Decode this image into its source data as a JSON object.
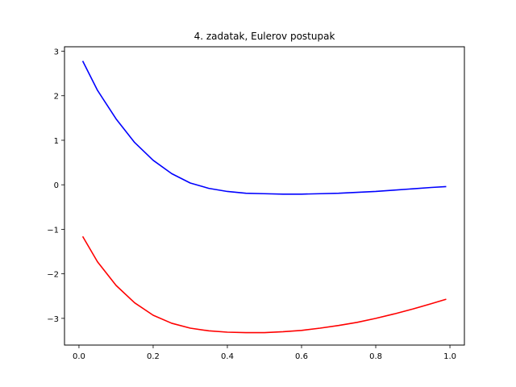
{
  "chart_data": {
    "type": "line",
    "title": "4. zadatak, Eulerov postupak",
    "xlabel": "",
    "ylabel": "",
    "xlim": [
      -0.039,
      1.039
    ],
    "ylim": [
      -3.6,
      3.1
    ],
    "xticks": [
      0.0,
      0.2,
      0.4,
      0.6,
      0.8,
      1.0
    ],
    "xtick_labels": [
      "0.0",
      "0.2",
      "0.4",
      "0.6",
      "0.8",
      "1.0"
    ],
    "yticks": [
      3,
      2,
      1,
      0,
      -1,
      -2,
      -3
    ],
    "ytick_labels": [
      "3",
      "2",
      "1",
      "0",
      "−1",
      "−2",
      "−3"
    ],
    "grid": false,
    "series": [
      {
        "color": "#0000ff",
        "x": [
          0.01,
          0.05,
          0.1,
          0.15,
          0.2,
          0.25,
          0.3,
          0.35,
          0.4,
          0.45,
          0.5,
          0.55,
          0.6,
          0.65,
          0.7,
          0.75,
          0.8,
          0.85,
          0.9,
          0.95,
          0.99
        ],
        "y": [
          2.78,
          2.12,
          1.48,
          0.95,
          0.55,
          0.25,
          0.04,
          -0.08,
          -0.15,
          -0.19,
          -0.2,
          -0.21,
          -0.21,
          -0.2,
          -0.19,
          -0.17,
          -0.15,
          -0.12,
          -0.09,
          -0.06,
          -0.04
        ]
      },
      {
        "color": "#ff0000",
        "x": [
          0.01,
          0.05,
          0.1,
          0.15,
          0.2,
          0.25,
          0.3,
          0.35,
          0.4,
          0.45,
          0.475,
          0.5,
          0.55,
          0.6,
          0.65,
          0.7,
          0.75,
          0.8,
          0.85,
          0.9,
          0.95,
          0.99
        ],
        "y": [
          -1.16,
          -1.73,
          -2.26,
          -2.65,
          -2.93,
          -3.11,
          -3.22,
          -3.28,
          -3.31,
          -3.32,
          -3.32,
          -3.32,
          -3.3,
          -3.27,
          -3.22,
          -3.16,
          -3.09,
          -3.0,
          -2.9,
          -2.79,
          -2.67,
          -2.57
        ]
      }
    ]
  }
}
